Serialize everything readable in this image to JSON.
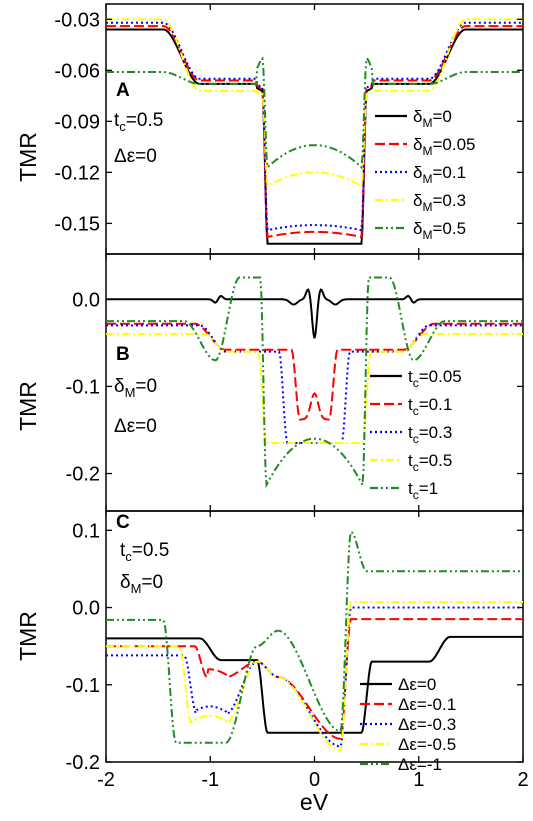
{
  "figure": {
    "xlabel": "eV",
    "x_ticks": [
      "-2",
      "-1",
      "0",
      "1",
      "2"
    ]
  },
  "chart_data": [
    {
      "type": "line",
      "panel": "A",
      "ylabel": "TMR",
      "xlim": [
        -2,
        2
      ],
      "ylim": [
        -0.168,
        -0.021
      ],
      "y_ticks": [
        "-0.03",
        "-0.06",
        "-0.09",
        "-0.12",
        "-0.15"
      ],
      "annotations": [
        {
          "base": "t",
          "sub": "c",
          "tail": "=0.5"
        },
        {
          "base": "Δε=0",
          "sub": "",
          "tail": ""
        }
      ],
      "legend_position": "right",
      "series": [
        {
          "legend_base": "δ",
          "legend_sub": "M",
          "legend_tail": "=0",
          "color": "#000000",
          "dash": "solid",
          "edge": -0.036,
          "step": -0.068,
          "dip": -0.072,
          "bowl": [
            -0.162,
            -0.162
          ]
        },
        {
          "legend_base": "δ",
          "legend_sub": "M",
          "legend_tail": "=0.05",
          "color": "#ff0000",
          "dash": "dashed",
          "edge": -0.034,
          "step": -0.066,
          "dip": -0.071,
          "bowl": [
            -0.155,
            -0.158
          ]
        },
        {
          "legend_base": "δ",
          "legend_sub": "M",
          "legend_tail": "=0.1",
          "color": "#0000ff",
          "dash": "dotted",
          "edge": -0.032,
          "step": -0.065,
          "dip": -0.07,
          "bowl": [
            -0.151,
            -0.154
          ]
        },
        {
          "legend_base": "δ",
          "legend_sub": "M",
          "legend_tail": "=0.3",
          "color": "#ffff00",
          "dash": "dashdot",
          "edge": -0.03,
          "step": -0.072,
          "dip": -0.074,
          "bowl": [
            -0.12,
            -0.128
          ]
        },
        {
          "legend_base": "δ",
          "legend_sub": "M",
          "legend_tail": "=0.5",
          "color": "#228b22",
          "dash": "dashdotdot",
          "edge": -0.061,
          "step": -0.068,
          "dip": -0.053,
          "bowl": [
            -0.104,
            -0.117
          ]
        }
      ]
    },
    {
      "type": "line",
      "panel": "B",
      "ylabel": "TMR",
      "xlim": [
        -2,
        2
      ],
      "ylim": [
        -0.243,
        0.052
      ],
      "y_ticks": [
        "0.0",
        "-0.1",
        "-0.2"
      ],
      "annotations": [
        {
          "base": "δ",
          "sub": "M",
          "tail": "=0"
        },
        {
          "base": "Δε=0",
          "sub": "",
          "tail": ""
        }
      ],
      "legend_position": "right",
      "series": [
        {
          "legend_base": "t",
          "legend_sub": "c",
          "legend_tail": "=0.05",
          "color": "#000000",
          "dash": "solid",
          "edge": 0.0,
          "inner_edge": 0.0,
          "bowl": [
            -0.045,
            -0.045
          ],
          "note": "sharp dip at 0, small wiggles near ±0.2 and ±0.9"
        },
        {
          "legend_base": "t",
          "legend_sub": "c",
          "legend_tail": "=0.1",
          "color": "#ff0000",
          "dash": "dashed",
          "edge": -0.028,
          "inner_edge": -0.058,
          "bowl": [
            -0.138,
            -0.138
          ]
        },
        {
          "legend_base": "t",
          "legend_sub": "c",
          "legend_tail": "=0.3",
          "color": "#0000ff",
          "dash": "dotted",
          "edge": -0.03,
          "inner_edge": -0.06,
          "bowl": [
            -0.165,
            -0.165
          ]
        },
        {
          "legend_base": "t",
          "legend_sub": "c",
          "legend_tail": "=0.5",
          "color": "#ffff00",
          "dash": "dashdot",
          "edge": -0.04,
          "inner_edge": -0.06,
          "bowl": [
            -0.165,
            -0.165
          ]
        },
        {
          "legend_base": "t",
          "legend_sub": "c",
          "legend_tail": "=1",
          "color": "#228b22",
          "dash": "dashdotdot",
          "edge": -0.025,
          "inner_edge": 0.025,
          "bowl": [
            -0.16,
            -0.213
          ]
        }
      ]
    },
    {
      "type": "line",
      "panel": "C",
      "ylabel": "TMR",
      "xlim": [
        -2,
        2
      ],
      "ylim": [
        -0.2,
        0.125
      ],
      "y_ticks": [
        "0.1",
        "0.0",
        "-0.1",
        "-0.2"
      ],
      "annotations": [
        {
          "base": "t",
          "sub": "c",
          "tail": "=0.5"
        },
        {
          "base": "δ",
          "sub": "M",
          "tail": "=0"
        }
      ],
      "legend_position": "bottom-right",
      "series": [
        {
          "legend_base": "Δε=0",
          "legend_sub": "",
          "legend_tail": "",
          "color": "#000000",
          "dash": "solid",
          "left_level": -0.04,
          "left_step": -0.068,
          "center_low": -0.162,
          "right_level": -0.038
        },
        {
          "legend_base": "Δε=-0.1",
          "legend_sub": "",
          "legend_tail": "",
          "color": "#ff0000",
          "dash": "dashed",
          "left_level": -0.05,
          "left_step": -0.09,
          "center_low": -0.17,
          "right_level": -0.015
        },
        {
          "legend_base": "Δε=-0.3",
          "legend_sub": "",
          "legend_tail": "",
          "color": "#0000ff",
          "dash": "dotted",
          "left_level": -0.062,
          "left_step": -0.138,
          "center_low": -0.18,
          "right_level": 0.0
        },
        {
          "legend_base": "Δε=-0.5",
          "legend_sub": "",
          "legend_tail": "",
          "color": "#ffff00",
          "dash": "dashdot",
          "left_level": -0.05,
          "left_step": -0.15,
          "center_low": -0.185,
          "right_level": 0.007
        },
        {
          "legend_base": "Δε=-1",
          "legend_sub": "",
          "legend_tail": "",
          "color": "#228b22",
          "dash": "dashdotdot",
          "left_level": -0.016,
          "left_step": -0.175,
          "center_low": -0.16,
          "right_level": 0.047,
          "peak": 0.098
        }
      ]
    }
  ]
}
